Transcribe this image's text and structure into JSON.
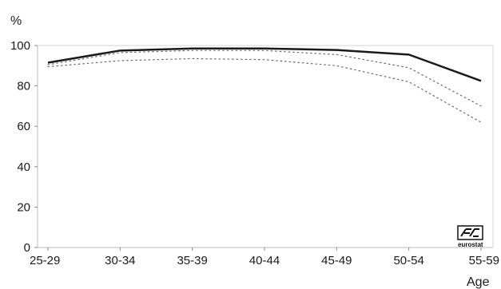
{
  "chart_data": {
    "type": "line",
    "categories": [
      "25-29",
      "30-34",
      "35-39",
      "40-44",
      "45-49",
      "50-54",
      "55-59"
    ],
    "series": [
      {
        "values": [
          91.5,
          97.5,
          98.5,
          98.5,
          97.8,
          95.5,
          82.5
        ],
        "style": "solid",
        "color": "#1a1a1a"
      },
      {
        "values": [
          90.5,
          96.5,
          97.5,
          97.5,
          95.5,
          89.0,
          70.0
        ],
        "style": "dotted",
        "color": "#666666"
      },
      {
        "values": [
          89.5,
          92.5,
          93.5,
          93.0,
          90.0,
          82.0,
          62.0
        ],
        "style": "dotted",
        "color": "#666666"
      }
    ],
    "xlabel": "Age",
    "ylabel": "%",
    "ylim": [
      0,
      100
    ],
    "yticks": [
      0,
      20,
      40,
      60,
      80,
      100
    ],
    "grid": false,
    "legend": "none"
  },
  "logo": {
    "text": "eurostat"
  }
}
